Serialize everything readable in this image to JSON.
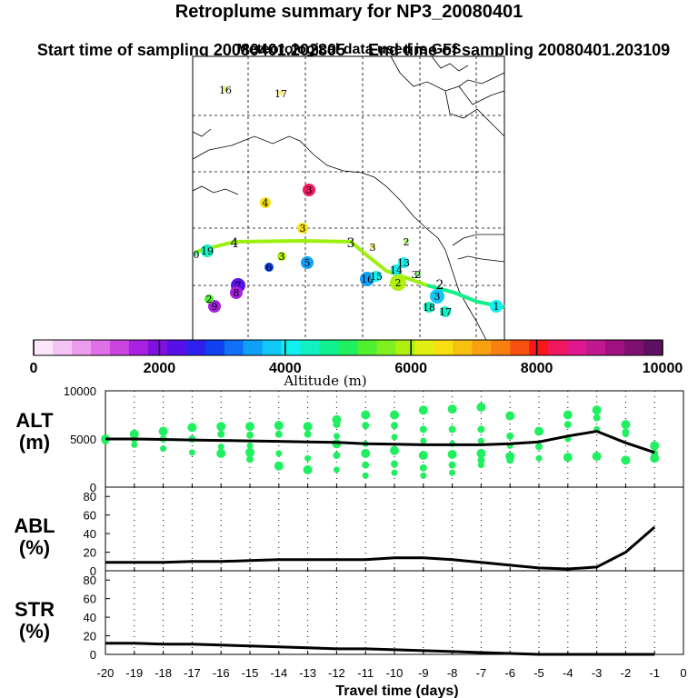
{
  "header": {
    "title": "Retroplume summary for NP3_20080401",
    "start_label": "Start time of sampling 20080401.202805",
    "end_label": "End time of sampling 20080401.203109",
    "met_label": "Meteorological data used is GFS"
  },
  "colorbar": {
    "label": "Altitude (m)",
    "ticks": [
      "0",
      "2000",
      "4000",
      "6000",
      "8000",
      "10000"
    ],
    "colors": [
      "#fbe6fb",
      "#f4c4f4",
      "#ec9cec",
      "#e070e8",
      "#cc44e0",
      "#a820e0",
      "#8010e0",
      "#5810e8",
      "#3020f0",
      "#1040f0",
      "#1070f8",
      "#10a0f8",
      "#10c8f8",
      "#10f0f0",
      "#10f0c0",
      "#10f090",
      "#20f060",
      "#50f030",
      "#80f020",
      "#b0f010",
      "#e0f010",
      "#f8e010",
      "#f8c010",
      "#f8a010",
      "#f88010",
      "#f85010",
      "#f81818",
      "#f01860",
      "#e01890",
      "#c01890",
      "#a01080",
      "#801070",
      "#601060"
    ]
  },
  "map": {
    "markers": [
      {
        "label": "16",
        "alt": 6000
      },
      {
        "label": "17",
        "alt": 6500
      },
      {
        "label": "4",
        "alt": 6500
      },
      {
        "label": "3",
        "alt": 8300
      },
      {
        "label": "3",
        "alt": 6500
      },
      {
        "label": "3",
        "alt": 6000
      },
      {
        "label": "3",
        "alt": 6500
      },
      {
        "label": "2",
        "alt": 5500
      },
      {
        "label": "19",
        "alt": 4500
      },
      {
        "label": "0",
        "alt": 4500
      },
      {
        "label": "6",
        "alt": 2800
      },
      {
        "label": "5",
        "alt": 3500
      },
      {
        "label": "13",
        "alt": 4000
      },
      {
        "label": "14",
        "alt": 4200
      },
      {
        "label": "16",
        "alt": 3600
      },
      {
        "label": "15",
        "alt": 4000
      },
      {
        "label": "2",
        "alt": 6000
      },
      {
        "label": "2",
        "alt": 5200
      },
      {
        "label": "3",
        "alt": 3800
      },
      {
        "label": "1",
        "alt": 4000
      },
      {
        "label": "18",
        "alt": 4400
      },
      {
        "label": "17",
        "alt": 4500
      },
      {
        "label": "7",
        "alt": 2200
      },
      {
        "label": "8",
        "alt": 1700
      },
      {
        "label": "9",
        "alt": 1600
      },
      {
        "label": "2",
        "alt": 5400
      }
    ],
    "path_labels": [
      {
        "label": "4",
        "alt": 5000
      },
      {
        "label": "3",
        "alt": 5000
      },
      {
        "label": "2",
        "alt": 5000
      },
      {
        "label": "3",
        "alt": 5000
      }
    ]
  },
  "chart_data": [
    {
      "type": "line",
      "panel": "ALT",
      "ylabel": "ALT\n(m)",
      "ylabel_line1": "ALT",
      "ylabel_line2": "(m)",
      "ylim": [
        0,
        10000
      ],
      "yticks": [
        0,
        5000,
        10000
      ],
      "x": [
        -20,
        -19,
        -18,
        -17,
        -16,
        -15,
        -14,
        -13,
        -12,
        -11,
        -10,
        -9,
        -8,
        -7,
        -6,
        -5,
        -4,
        -3,
        -2,
        -1
      ],
      "y": [
        5000,
        5000,
        4950,
        4900,
        4850,
        4800,
        4750,
        4700,
        4650,
        4500,
        4450,
        4400,
        4400,
        4400,
        4500,
        4700,
        5300,
        5800,
        4600,
        3600
      ],
      "scatter": [
        {
          "x": -20,
          "values": [
            5000,
            4800
          ]
        },
        {
          "x": -19,
          "values": [
            5500,
            5000,
            4400
          ]
        },
        {
          "x": -18,
          "values": [
            5800,
            5000,
            4000
          ]
        },
        {
          "x": -17,
          "values": [
            6200,
            5000,
            3600
          ]
        },
        {
          "x": -16,
          "values": [
            6300,
            5500,
            4200,
            3500
          ]
        },
        {
          "x": -15,
          "values": [
            6300,
            5400,
            4300,
            3600,
            2900
          ]
        },
        {
          "x": -14,
          "values": [
            6400,
            5500,
            3500,
            2200
          ]
        },
        {
          "x": -13,
          "values": [
            6300,
            5500,
            3000,
            1800
          ]
        },
        {
          "x": -12,
          "values": [
            7000,
            6500,
            5300,
            4500,
            3300,
            1800
          ]
        },
        {
          "x": -11,
          "values": [
            7500,
            6400,
            4500,
            3500,
            2300,
            1200
          ]
        },
        {
          "x": -10,
          "values": [
            7500,
            6400,
            5200,
            3800,
            2400,
            1500
          ]
        },
        {
          "x": -9,
          "values": [
            8000,
            6000,
            4800,
            3300,
            2000,
            1200
          ]
        },
        {
          "x": -8,
          "values": [
            8100,
            6000,
            4500,
            3400,
            2300,
            1500
          ]
        },
        {
          "x": -7,
          "values": [
            8300,
            6000,
            4800,
            3500,
            2800,
            2300
          ]
        },
        {
          "x": -6,
          "values": [
            7400,
            5300,
            4300,
            3200,
            2800
          ]
        },
        {
          "x": -5,
          "values": [
            5800,
            4200,
            3000
          ]
        },
        {
          "x": -4,
          "values": [
            7500,
            6500,
            5000,
            3100
          ]
        },
        {
          "x": -3,
          "values": [
            8000,
            7200,
            6000,
            3200
          ]
        },
        {
          "x": -2,
          "values": [
            6500,
            5700,
            5500,
            2800
          ]
        },
        {
          "x": -1,
          "values": [
            4300,
            3500,
            3200,
            3000
          ]
        }
      ]
    },
    {
      "type": "line",
      "panel": "ABL",
      "ylabel_line1": "ABL",
      "ylabel_line2": "(%)",
      "ylim": [
        0,
        90
      ],
      "yticks": [
        0,
        20,
        40,
        60,
        80
      ],
      "x": [
        -20,
        -19,
        -18,
        -17,
        -16,
        -15,
        -14,
        -13,
        -12,
        -11,
        -10,
        -9,
        -8,
        -7,
        -6,
        -5,
        -4,
        -3,
        -2,
        -1
      ],
      "y": [
        9,
        9,
        9,
        10,
        10,
        11,
        12,
        12,
        12,
        12,
        14,
        14,
        12,
        9,
        6,
        3,
        2,
        4,
        20,
        47
      ]
    },
    {
      "type": "line",
      "panel": "STR",
      "ylabel_line1": "STR",
      "ylabel_line2": "(%)",
      "ylim": [
        0,
        90
      ],
      "yticks": [
        0,
        20,
        40,
        60,
        80
      ],
      "x": [
        -20,
        -19,
        -18,
        -17,
        -16,
        -15,
        -14,
        -13,
        -12,
        -11,
        -10,
        -9,
        -8,
        -7,
        -6,
        -5,
        -4,
        -3,
        -2,
        -1
      ],
      "y": [
        12,
        12,
        11,
        11,
        10,
        9,
        8,
        7,
        6,
        6,
        5,
        4,
        3,
        2,
        1,
        0,
        0,
        0,
        0,
        0
      ]
    }
  ],
  "xaxis": {
    "label": "Travel time (days)",
    "ticks": [
      "-20",
      "-19",
      "-18",
      "-17",
      "-16",
      "-15",
      "-14",
      "-13",
      "-12",
      "-11",
      "-10",
      "-9",
      "-8",
      "-7",
      "-6",
      "-5",
      "-4",
      "-3",
      "-2",
      "-1",
      "0"
    ]
  }
}
